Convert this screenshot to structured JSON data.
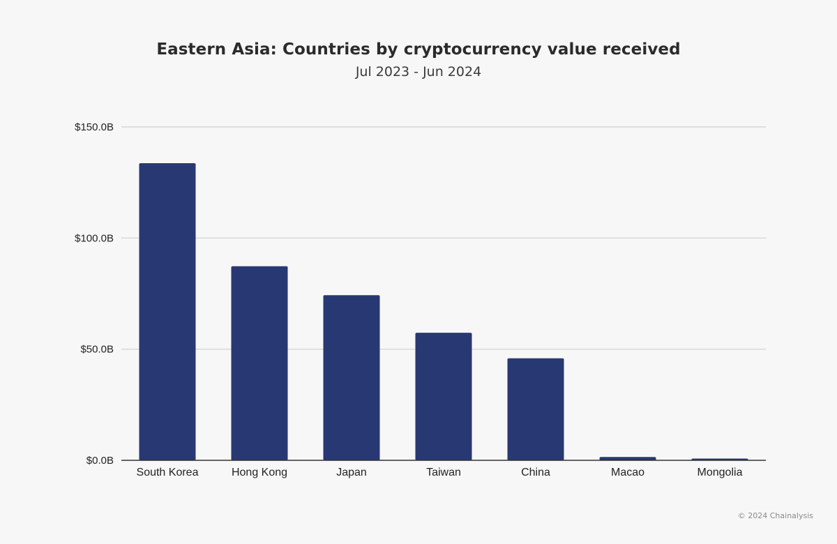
{
  "chart_data": {
    "type": "bar",
    "title": "Eastern Asia: Countries by cryptocurrency value received",
    "subtitle": "Jul 2023 - Jun 2024",
    "xlabel": "",
    "ylabel": "",
    "categories": [
      "South Korea",
      "Hong Kong",
      "Japan",
      "Taiwan",
      "China",
      "Macao",
      "Mongolia"
    ],
    "values": [
      133.7,
      87.3,
      74.3,
      57.4,
      45.9,
      1.5,
      0.8
    ],
    "unit": "B",
    "ylim": [
      0,
      150
    ],
    "yticks": [
      0,
      50,
      100,
      150
    ],
    "ytick_labels": [
      "$0.0B",
      "$50.0B",
      "$100.0B",
      "$150.0B"
    ],
    "grid": true,
    "bar_color": "#283872"
  },
  "footer": {
    "copyright": "© 2024 Chainalysis"
  }
}
